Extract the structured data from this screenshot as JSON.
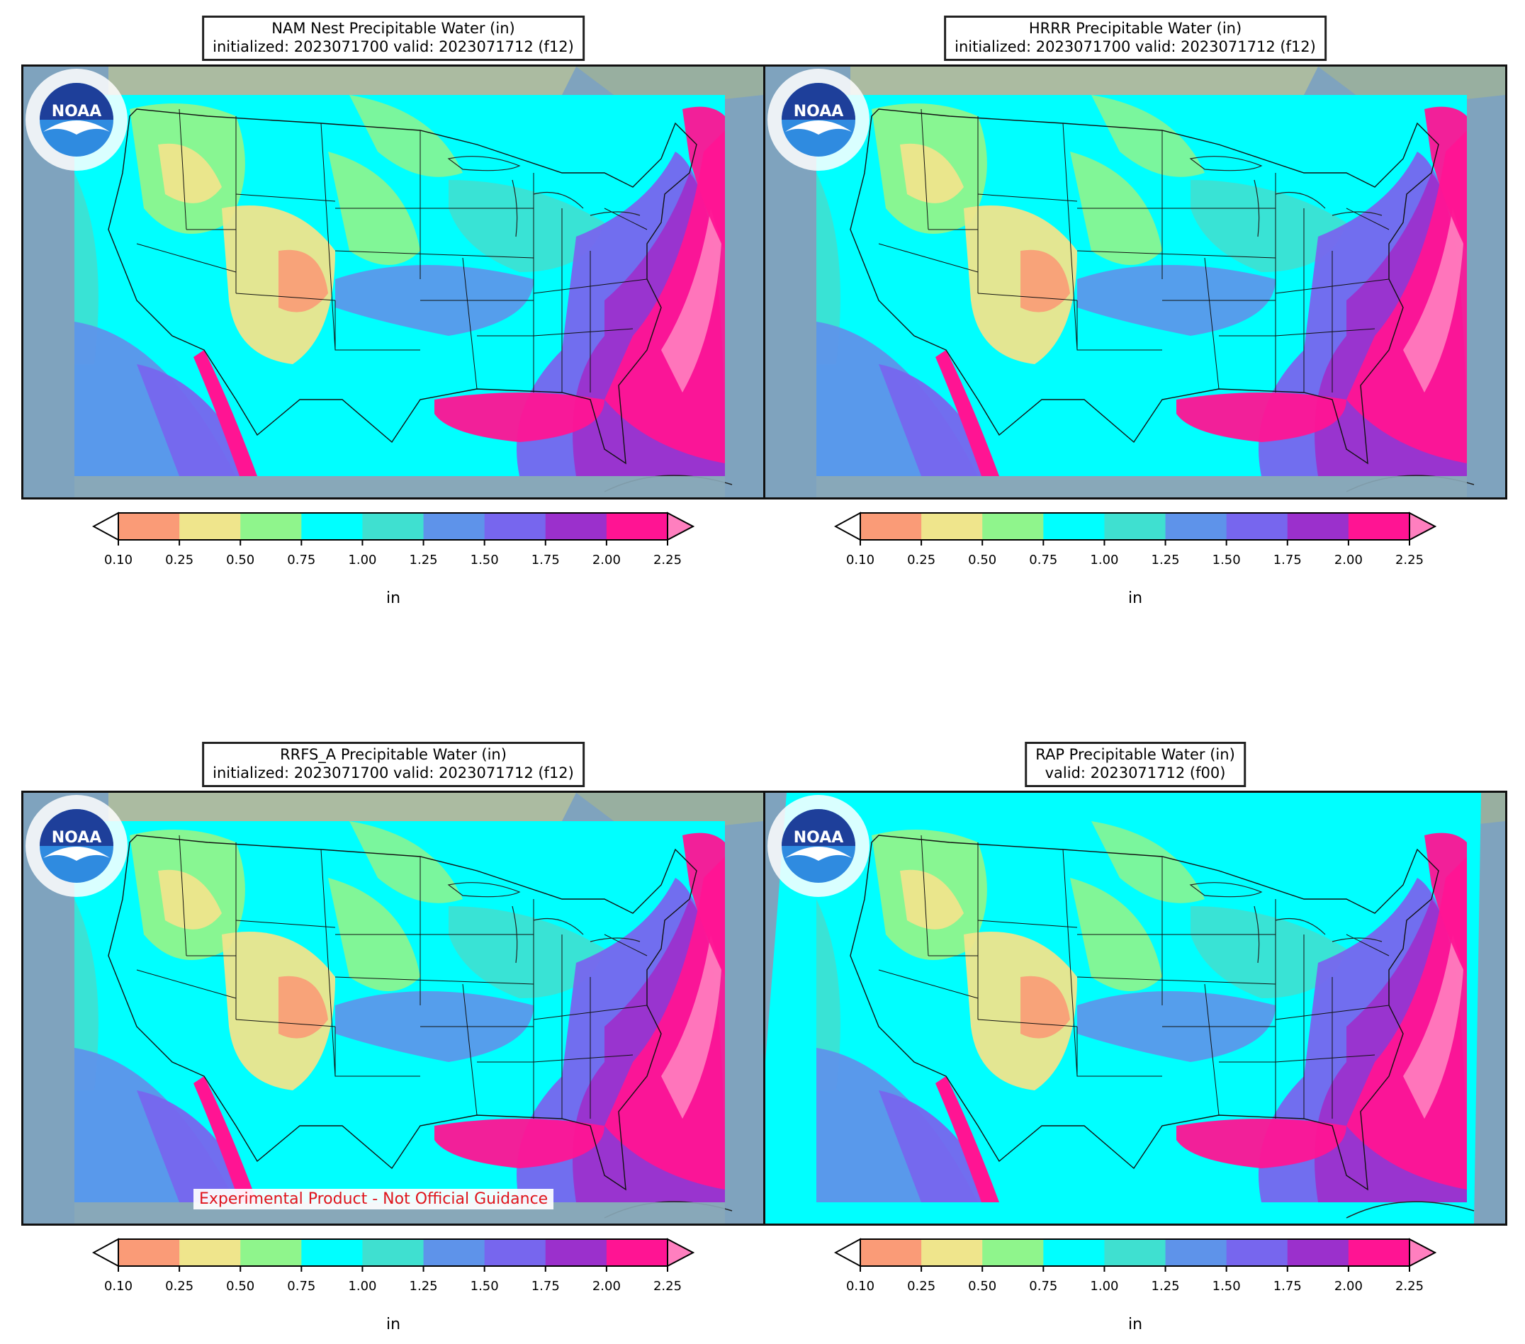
{
  "colorbar": {
    "ticks": [
      "0.10",
      "0.25",
      "0.50",
      "0.75",
      "1.00",
      "1.25",
      "1.50",
      "1.75",
      "2.00",
      "2.25"
    ],
    "colors": [
      "#fa9b77",
      "#efe58c",
      "#8ff58c",
      "#00ffff",
      "#3fe0d0",
      "#5e93ea",
      "#7766ee",
      "#9b30cc",
      "#ff1493"
    ],
    "under_color": "#ffffff",
    "over_color": "#ff7fbf",
    "unit": "in"
  },
  "panels": [
    {
      "id": "nam-nest",
      "title_line1": "NAM Nest Precipitable Water (in)",
      "title_line2": "initialized: 2023071700 valid: 2023071712 (f12)",
      "logo_text": "NOAA",
      "footer_label": ""
    },
    {
      "id": "hrrr",
      "title_line1": "HRRR Precipitable Water (in)",
      "title_line2": "initialized: 2023071700 valid: 2023071712 (f12)",
      "logo_text": "NOAA",
      "footer_label": ""
    },
    {
      "id": "rrfs-a",
      "title_line1": "RRFS_A Precipitable Water (in)",
      "title_line2": "initialized: 2023071700 valid: 2023071712 (f12)",
      "logo_text": "NOAA",
      "footer_label": "Experimental Product - Not Official Guidance"
    },
    {
      "id": "rap",
      "title_line1": "RAP Precipitable Water (in)",
      "title_line2": "valid: 2023071712 (f00)",
      "logo_text": "NOAA",
      "footer_label": ""
    }
  ]
}
